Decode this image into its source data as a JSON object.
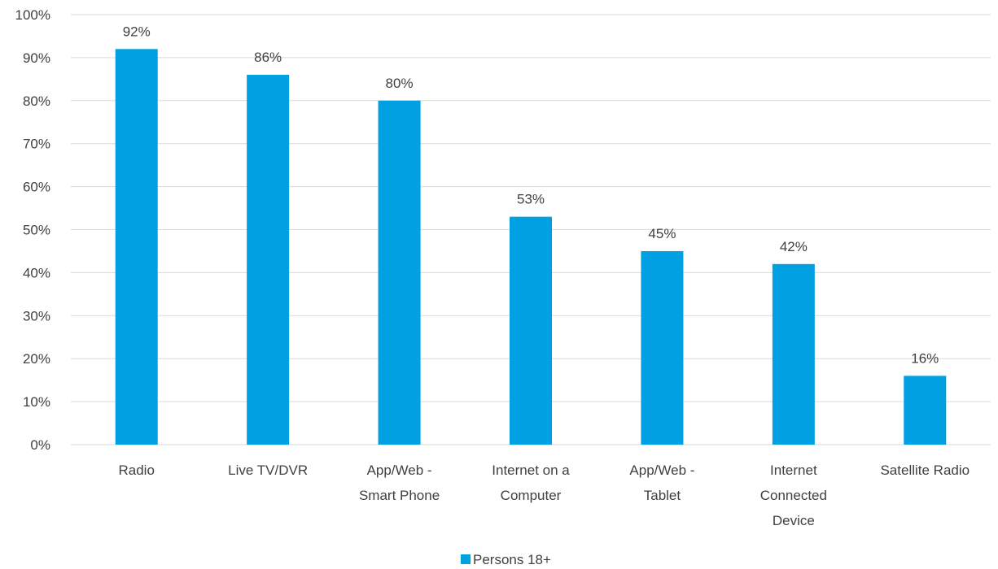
{
  "chart_data": {
    "type": "bar",
    "title": "",
    "xlabel": "",
    "ylabel": "",
    "categories": [
      [
        "Radio"
      ],
      [
        "Live TV/DVR"
      ],
      [
        "App/Web -",
        "Smart Phone"
      ],
      [
        "Internet on a",
        "Computer"
      ],
      [
        "App/Web -",
        "Tablet"
      ],
      [
        "Internet",
        "Connected",
        "Device"
      ],
      [
        "Satellite Radio"
      ]
    ],
    "series": [
      {
        "name": "Persons 18+",
        "color": "#00a0e3",
        "values": [
          92,
          86,
          80,
          53,
          45,
          42,
          16
        ],
        "data_labels": [
          "92%",
          "86%",
          "80%",
          "53%",
          "45%",
          "42%",
          "16%"
        ]
      }
    ],
    "ylim": [
      0,
      100
    ],
    "yticks": [
      0,
      10,
      20,
      30,
      40,
      50,
      60,
      70,
      80,
      90,
      100
    ],
    "ytick_labels": [
      "0%",
      "10%",
      "20%",
      "30%",
      "40%",
      "50%",
      "60%",
      "70%",
      "80%",
      "90%",
      "100%"
    ],
    "grid": true,
    "legend_position": "bottom"
  }
}
